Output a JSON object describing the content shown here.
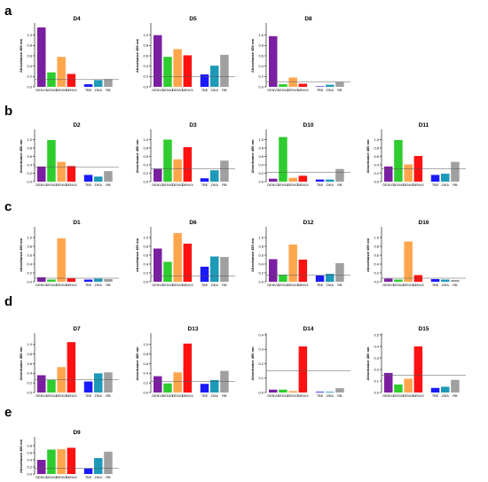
{
  "figure": {
    "panel_letters": [
      "a",
      "b",
      "c",
      "d",
      "e"
    ],
    "colors": {
      "DENV1": "#7b1fa2",
      "DENV2": "#2ecc2e",
      "DENV3": "#ffa64d",
      "DENV4": "#ff1111",
      "TBE": "#1a1aff",
      "ZIKA": "#1c9ab8",
      "RB": "#a0a0a0",
      "cutoff": "#555555"
    }
  },
  "chart_data": [
    {
      "type": "bar",
      "title": "D4",
      "ylabel": "Absorbance 450 nm",
      "ylim": [
        0,
        1.2
      ],
      "yticks": [
        0.0,
        0.2,
        0.4,
        0.6,
        0.8,
        1.0
      ],
      "categories": [
        "DENV1",
        "DENV2",
        "DENV3",
        "DENV4",
        "TBE",
        "ZIKA",
        "RB"
      ],
      "values": [
        1.15,
        0.28,
        0.58,
        0.25,
        0.05,
        0.13,
        0.15
      ],
      "cutoff": 0.14
    },
    {
      "type": "bar",
      "title": "D5",
      "ylabel": "Absorbance 450 nm",
      "ylim": [
        0,
        1.2
      ],
      "yticks": [
        0.0,
        0.2,
        0.4,
        0.6,
        0.8,
        1.0
      ],
      "categories": [
        "DENV1",
        "DENV2",
        "DENV3",
        "DENV4",
        "TBE",
        "ZIKA",
        "RB"
      ],
      "values": [
        1.0,
        0.58,
        0.73,
        0.61,
        0.24,
        0.41,
        0.62
      ],
      "cutoff": 0.2
    },
    {
      "type": "bar",
      "title": "D8",
      "ylabel": "Absorbance 450 nm",
      "ylim": [
        0,
        1.2
      ],
      "yticks": [
        0.0,
        0.2,
        0.4,
        0.6,
        0.8,
        1.0
      ],
      "categories": [
        "DENV1",
        "DENV2",
        "DENV3",
        "DENV4",
        "TBE",
        "ZIKA",
        "RB"
      ],
      "values": [
        0.98,
        0.05,
        0.18,
        0.06,
        0.01,
        0.04,
        0.09
      ],
      "cutoff": 0.1
    },
    {
      "type": "bar",
      "title": "D2",
      "ylabel": "Absorbance 450 nm",
      "ylim": [
        0,
        1.2
      ],
      "yticks": [
        0.0,
        0.2,
        0.4,
        0.6,
        0.8,
        1.0
      ],
      "categories": [
        "DENV1",
        "DENV2",
        "DENV3",
        "DENV4",
        "TBE",
        "ZIKA",
        "RB"
      ],
      "values": [
        0.36,
        0.99,
        0.47,
        0.37,
        0.16,
        0.12,
        0.25
      ],
      "cutoff": 0.34
    },
    {
      "type": "bar",
      "title": "D3",
      "ylabel": "Absorbance 450 nm",
      "ylim": [
        0,
        1.2
      ],
      "yticks": [
        0.0,
        0.2,
        0.4,
        0.6,
        0.8,
        1.0
      ],
      "categories": [
        "DENV1",
        "DENV2",
        "DENV3",
        "DENV4",
        "TBE",
        "ZIKA",
        "RB"
      ],
      "values": [
        0.3,
        1.0,
        0.53,
        0.82,
        0.08,
        0.27,
        0.5
      ],
      "cutoff": 0.31
    },
    {
      "type": "bar",
      "title": "D10",
      "ylabel": "Absorbance 450 nm",
      "ylim": [
        0,
        1.2
      ],
      "yticks": [
        0.0,
        0.2,
        0.4,
        0.6,
        0.8,
        1.0
      ],
      "categories": [
        "DENV1",
        "DENV2",
        "DENV3",
        "DENV4",
        "TBE",
        "ZIKA",
        "RB"
      ],
      "values": [
        0.07,
        1.06,
        0.09,
        0.14,
        0.05,
        0.05,
        0.3
      ],
      "cutoff": 0.22
    },
    {
      "type": "bar",
      "title": "D11",
      "ylabel": "Absorbance 450 nm",
      "ylim": [
        0,
        1.2
      ],
      "yticks": [
        0.0,
        0.2,
        0.4,
        0.6,
        0.8,
        1.0
      ],
      "categories": [
        "DENV1",
        "DENV2",
        "DENV3",
        "DENV4",
        "TBE",
        "ZIKA",
        "RB"
      ],
      "values": [
        0.36,
        0.99,
        0.41,
        0.61,
        0.16,
        0.19,
        0.47
      ],
      "cutoff": 0.31
    },
    {
      "type": "bar",
      "title": "D1",
      "ylabel": "Absorbance 450 nm",
      "ylim": [
        0,
        1.2
      ],
      "yticks": [
        0.0,
        0.2,
        0.4,
        0.6,
        0.8,
        1.0
      ],
      "categories": [
        "DENV1",
        "DENV2",
        "DENV3",
        "DENV4",
        "TBE",
        "ZIKA",
        "RB"
      ],
      "values": [
        0.1,
        0.05,
        0.98,
        0.08,
        0.05,
        0.07,
        0.06
      ],
      "cutoff": 0.08
    },
    {
      "type": "bar",
      "title": "D6",
      "ylabel": "Absorbance 450 nm",
      "ylim": [
        0,
        1.2
      ],
      "yticks": [
        0.0,
        0.2,
        0.4,
        0.6,
        0.8,
        1.0
      ],
      "categories": [
        "DENV1",
        "DENV2",
        "DENV3",
        "DENV4",
        "TBE",
        "ZIKA",
        "RB"
      ],
      "values": [
        0.75,
        0.45,
        1.1,
        0.86,
        0.34,
        0.57,
        0.56
      ],
      "cutoff": 0.13
    },
    {
      "type": "bar",
      "title": "D12",
      "ylabel": "Absorbance 450 nm",
      "ylim": [
        0,
        1.2
      ],
      "yticks": [
        0.0,
        0.2,
        0.4,
        0.6,
        0.8,
        1.0
      ],
      "categories": [
        "DENV1",
        "DENV2",
        "DENV3",
        "DENV4",
        "TBE",
        "ZIKA",
        "RB"
      ],
      "values": [
        0.51,
        0.16,
        0.84,
        0.5,
        0.14,
        0.18,
        0.42
      ],
      "cutoff": 0.15
    },
    {
      "type": "bar",
      "title": "D16",
      "ylabel": "Absorbance 450 nm",
      "ylim": [
        0,
        1.2
      ],
      "yticks": [
        0.0,
        0.2,
        0.4,
        0.6,
        0.8,
        1.0
      ],
      "categories": [
        "DENV1",
        "DENV2",
        "DENV3",
        "DENV4",
        "TBE",
        "ZIKA",
        "RB"
      ],
      "values": [
        0.07,
        0.05,
        0.91,
        0.15,
        0.06,
        0.05,
        0.04
      ],
      "cutoff": 0.08
    },
    {
      "type": "bar",
      "title": "D7",
      "ylabel": "Absorbance 450 nm",
      "ylim": [
        0,
        1.2
      ],
      "yticks": [
        0.0,
        0.2,
        0.4,
        0.6,
        0.8,
        1.0
      ],
      "categories": [
        "DENV1",
        "DENV2",
        "DENV3",
        "DENV4",
        "TBE",
        "ZIKA",
        "RB"
      ],
      "values": [
        0.36,
        0.26,
        0.53,
        1.05,
        0.23,
        0.4,
        0.42
      ],
      "cutoff": 0.27
    },
    {
      "type": "bar",
      "title": "D13",
      "ylabel": "Absorbance 450 nm",
      "ylim": [
        0,
        1.2
      ],
      "yticks": [
        0.0,
        0.2,
        0.4,
        0.6,
        0.8,
        1.0
      ],
      "categories": [
        "DENV1",
        "DENV2",
        "DENV3",
        "DENV4",
        "TBE",
        "ZIKA",
        "RB"
      ],
      "values": [
        0.34,
        0.19,
        0.42,
        1.02,
        0.18,
        0.26,
        0.45
      ],
      "cutoff": 0.23
    },
    {
      "type": "bar",
      "title": "D14",
      "ylabel": "Absorbance 450 nm",
      "ylim": [
        0,
        0.4
      ],
      "yticks": [
        0.0,
        0.1,
        0.2,
        0.3,
        0.4
      ],
      "categories": [
        "DENV1",
        "DENV2",
        "DENV3",
        "DENV4",
        "TBE",
        "ZIKA",
        "RB"
      ],
      "values": [
        0.02,
        0.02,
        0.01,
        0.32,
        0.005,
        0.005,
        0.03
      ],
      "cutoff": 0.15
    },
    {
      "type": "bar",
      "title": "D15",
      "ylabel": "Absorbance 450 nm",
      "ylim": [
        0,
        0.5
      ],
      "yticks": [
        0.0,
        0.1,
        0.2,
        0.3,
        0.4,
        0.5
      ],
      "categories": [
        "DENV1",
        "DENV2",
        "DENV3",
        "DENV4",
        "TBE",
        "ZIKA",
        "RB"
      ],
      "values": [
        0.17,
        0.07,
        0.12,
        0.4,
        0.04,
        0.05,
        0.11
      ],
      "cutoff": 0.15
    },
    {
      "type": "bar",
      "title": "D9",
      "ylabel": "Absorbance 450 nm",
      "ylim": [
        0,
        1.0
      ],
      "yticks": [
        0.0,
        0.2,
        0.4,
        0.6,
        0.8
      ],
      "categories": [
        "DENV1",
        "DENV2",
        "DENV3",
        "DENV4",
        "TBE",
        "ZIKA",
        "RB"
      ],
      "values": [
        0.4,
        0.69,
        0.7,
        0.74,
        0.16,
        0.45,
        0.63
      ],
      "cutoff": 0.16
    }
  ]
}
